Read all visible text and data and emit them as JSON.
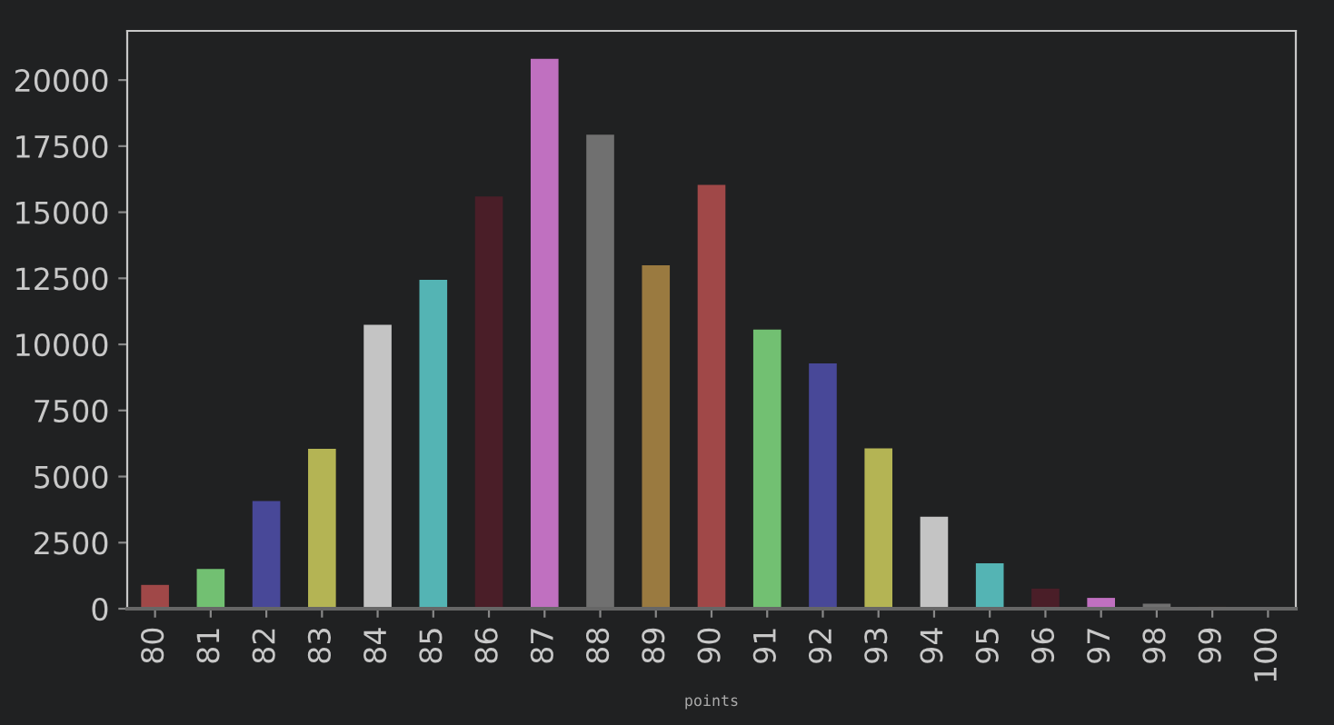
{
  "chart_data": {
    "type": "bar",
    "xlabel": "points",
    "categories": [
      "80",
      "81",
      "82",
      "83",
      "84",
      "85",
      "86",
      "87",
      "88",
      "89",
      "90",
      "91",
      "92",
      "93",
      "94",
      "95",
      "96",
      "97",
      "98",
      "99",
      "100"
    ],
    "values": [
      900,
      1500,
      4070,
      6050,
      10740,
      12440,
      15600,
      20800,
      17930,
      12990,
      16030,
      10560,
      9280,
      6070,
      3480,
      1720,
      760,
      410,
      190,
      70,
      10
    ],
    "colors": [
      "#a04848",
      "#72c072",
      "#484898",
      "#b4b454",
      "#c4c4c4",
      "#54b4b4",
      "#4a1e28",
      "#c070c0",
      "#707070",
      "#9a7a40",
      "#a04848",
      "#72c072",
      "#484898",
      "#b4b454",
      "#c4c4c4",
      "#54b4b4",
      "#4a1e28",
      "#c070c0",
      "#707070",
      "#9a7a40",
      "#a04848"
    ],
    "ylim": [
      0,
      21860
    ],
    "yticks": [
      0,
      2500,
      5000,
      7500,
      10000,
      12500,
      15000,
      17500,
      20000
    ],
    "grid": false,
    "legend": false
  }
}
